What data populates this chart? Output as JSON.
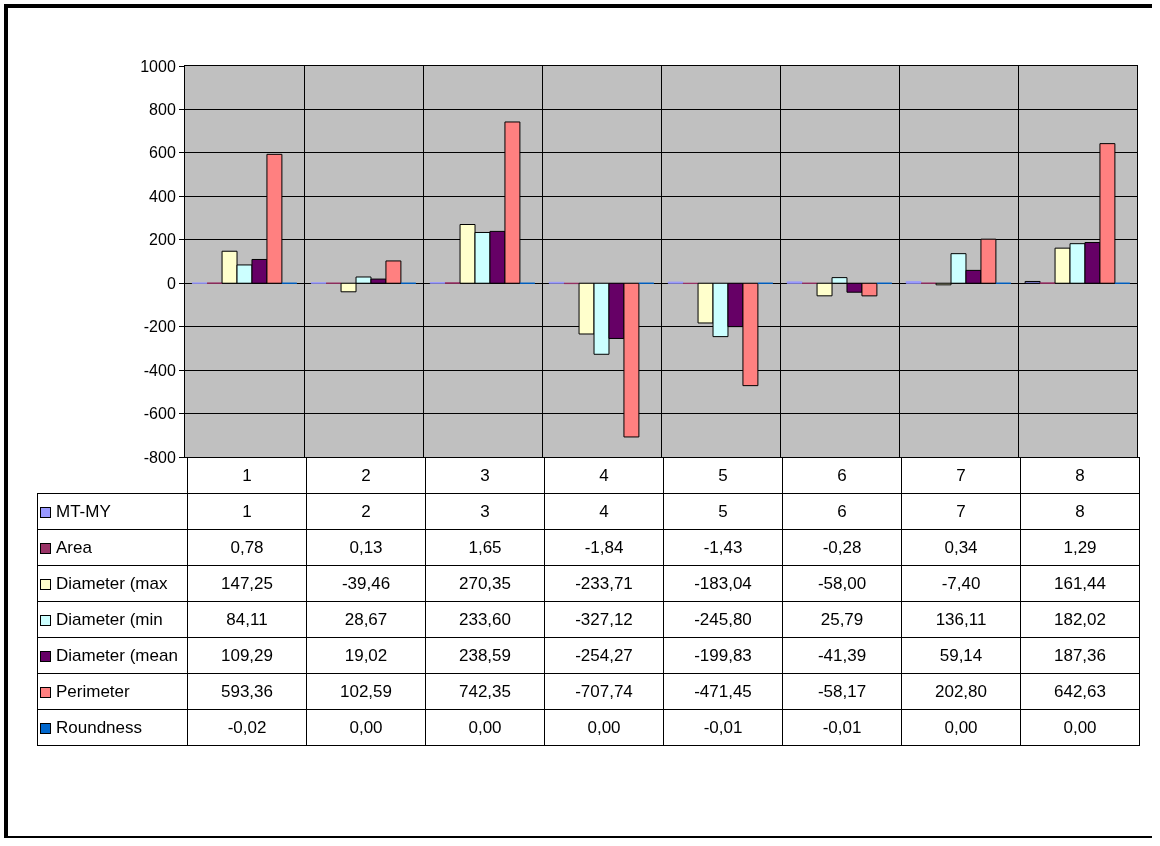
{
  "chart_data": {
    "type": "bar",
    "categories": [
      "1",
      "2",
      "3",
      "4",
      "5",
      "6",
      "7",
      "8"
    ],
    "series": [
      {
        "name": "MT-MY",
        "color": "#9999ff",
        "values": [
          1,
          2,
          3,
          4,
          5,
          6,
          7,
          8
        ],
        "value_labels": [
          "1",
          "2",
          "3",
          "4",
          "5",
          "6",
          "7",
          "8"
        ]
      },
      {
        "name": "Area",
        "color": "#993366",
        "values": [
          0.78,
          0.13,
          1.65,
          -1.84,
          -1.43,
          -0.28,
          0.34,
          1.29
        ],
        "value_labels": [
          "0,78",
          "0,13",
          "1,65",
          "-1,84",
          "-1,43",
          "-0,28",
          "0,34",
          "1,29"
        ]
      },
      {
        "name": "Diameter (max",
        "color": "#ffffcc",
        "values": [
          147.25,
          -39.46,
          270.35,
          -233.71,
          -183.04,
          -58.0,
          -7.4,
          161.44
        ],
        "value_labels": [
          "147,25",
          "-39,46",
          "270,35",
          "-233,71",
          "-183,04",
          "-58,00",
          "-7,40",
          "161,44"
        ]
      },
      {
        "name": "Diameter (min",
        "color": "#ccffff",
        "values": [
          84.11,
          28.67,
          233.6,
          -327.12,
          -245.8,
          25.79,
          136.11,
          182.02
        ],
        "value_labels": [
          "84,11",
          "28,67",
          "233,60",
          "-327,12",
          "-245,80",
          "25,79",
          "136,11",
          "182,02"
        ]
      },
      {
        "name": "Diameter (mean",
        "color": "#660066",
        "values": [
          109.29,
          19.02,
          238.59,
          -254.27,
          -199.83,
          -41.39,
          59.14,
          187.36
        ],
        "value_labels": [
          "109,29",
          "19,02",
          "238,59",
          "-254,27",
          "-199,83",
          "-41,39",
          "59,14",
          "187,36"
        ]
      },
      {
        "name": "Perimeter",
        "color": "#ff8080",
        "values": [
          593.36,
          102.59,
          742.35,
          -707.74,
          -471.45,
          -58.17,
          202.8,
          642.63
        ],
        "value_labels": [
          "593,36",
          "102,59",
          "742,35",
          "-707,74",
          "-471,45",
          "-58,17",
          "202,80",
          "642,63"
        ]
      },
      {
        "name": "Roundness",
        "color": "#0066cc",
        "values": [
          -0.02,
          0.0,
          0.0,
          0.0,
          -0.01,
          -0.01,
          0.0,
          0.0
        ],
        "value_labels": [
          "-0,02",
          "0,00",
          "0,00",
          "0,00",
          "-0,01",
          "-0,01",
          "0,00",
          "0,00"
        ]
      }
    ],
    "ylim": [
      -800,
      1000
    ],
    "yticks": [
      -800,
      -600,
      -400,
      -200,
      0,
      200,
      400,
      600,
      800,
      1000
    ],
    "grid": true,
    "legend": "bottom"
  }
}
